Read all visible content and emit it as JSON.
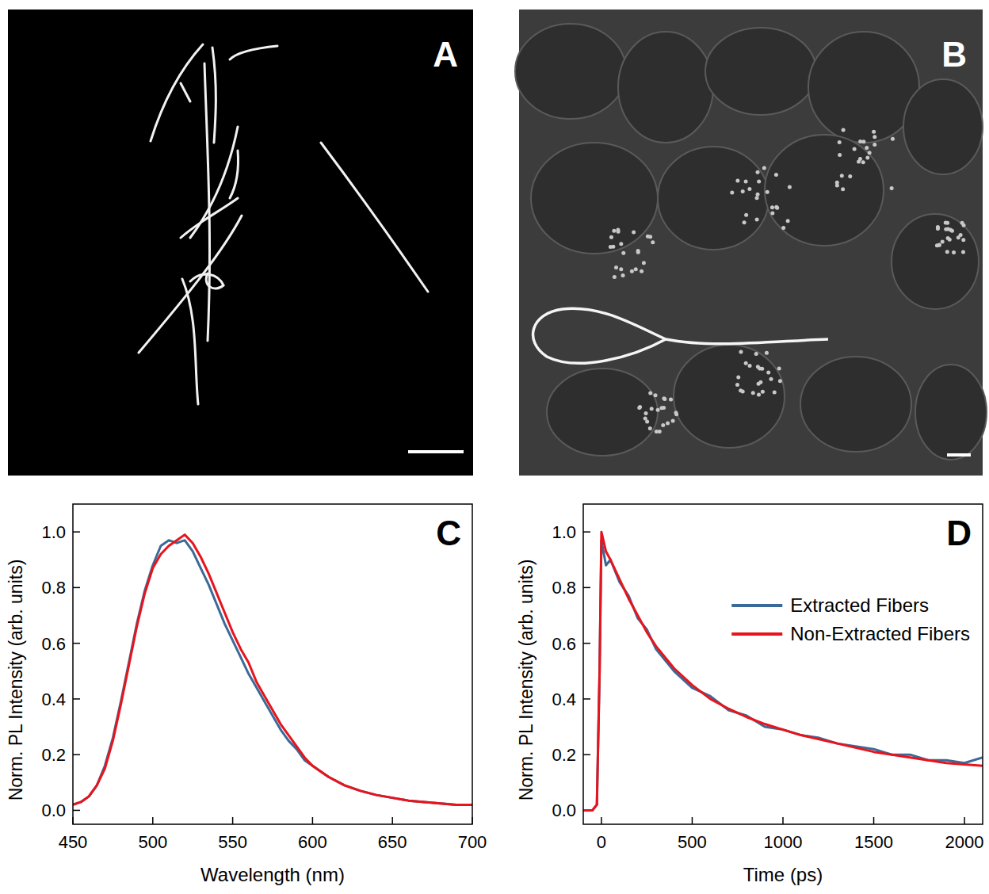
{
  "images": [
    {
      "panel_label": "A"
    },
    {
      "panel_label": "B"
    }
  ],
  "chart_data": [
    {
      "type": "line",
      "panel_label": "C",
      "x_label": "Wavelength (nm)",
      "y_label": "Norm. PL Intensity (arb. units)",
      "x": [
        450,
        455,
        460,
        465,
        470,
        475,
        480,
        485,
        490,
        495,
        500,
        505,
        510,
        515,
        520,
        525,
        530,
        535,
        540,
        545,
        550,
        555,
        560,
        565,
        570,
        575,
        580,
        585,
        590,
        595,
        600,
        610,
        620,
        630,
        640,
        650,
        660,
        670,
        680,
        690,
        700
      ],
      "series": [
        {
          "color": "#3b6a98",
          "values": [
            0.02,
            0.03,
            0.05,
            0.09,
            0.16,
            0.26,
            0.39,
            0.53,
            0.67,
            0.79,
            0.88,
            0.95,
            0.97,
            0.96,
            0.97,
            0.93,
            0.87,
            0.81,
            0.74,
            0.67,
            0.61,
            0.55,
            0.49,
            0.44,
            0.39,
            0.34,
            0.29,
            0.25,
            0.22,
            0.18,
            0.16,
            0.12,
            0.09,
            0.07,
            0.055,
            0.045,
            0.035,
            0.03,
            0.025,
            0.02,
            0.02
          ]
        },
        {
          "color": "#e8141c",
          "values": [
            0.02,
            0.03,
            0.05,
            0.09,
            0.15,
            0.25,
            0.38,
            0.52,
            0.66,
            0.78,
            0.87,
            0.92,
            0.95,
            0.97,
            0.99,
            0.96,
            0.91,
            0.85,
            0.78,
            0.71,
            0.64,
            0.58,
            0.53,
            0.46,
            0.41,
            0.36,
            0.31,
            0.27,
            0.23,
            0.19,
            0.16,
            0.12,
            0.09,
            0.07,
            0.055,
            0.045,
            0.035,
            0.03,
            0.025,
            0.02,
            0.02
          ]
        }
      ],
      "xlim": [
        450,
        700
      ],
      "xticks": [
        450,
        500,
        550,
        600,
        650,
        700
      ],
      "ylim": [
        -0.05,
        1.1
      ],
      "yticks": [
        {
          "value": 0,
          "label": "0.0"
        },
        0.2,
        0.4,
        0.6,
        0.8,
        {
          "value": 1,
          "label": "1.0"
        }
      ]
    },
    {
      "type": "line",
      "panel_label": "D",
      "x_label": "Time (ps)",
      "y_label": "Norm. PL Intensity (arb. units)",
      "x": [
        -100,
        -50,
        -25,
        -10,
        0,
        25,
        50,
        100,
        150,
        200,
        250,
        300,
        400,
        500,
        600,
        700,
        800,
        900,
        1000,
        1100,
        1200,
        1300,
        1400,
        1500,
        1600,
        1700,
        1800,
        1900,
        2000,
        2100
      ],
      "series": [
        {
          "name": "Extracted Fibers",
          "color": "#3b6a98",
          "values": [
            0.0,
            0.0,
            0.02,
            0.5,
            0.97,
            0.88,
            0.9,
            0.82,
            0.77,
            0.69,
            0.65,
            0.58,
            0.5,
            0.44,
            0.41,
            0.36,
            0.34,
            0.3,
            0.29,
            0.27,
            0.26,
            0.24,
            0.23,
            0.22,
            0.2,
            0.2,
            0.18,
            0.18,
            0.17,
            0.19
          ]
        },
        {
          "name": "Non-Extracted Fibers",
          "color": "#e8141c",
          "values": [
            0.0,
            0.0,
            0.02,
            0.5,
            1.0,
            0.93,
            0.9,
            0.83,
            0.76,
            0.7,
            0.64,
            0.59,
            0.51,
            0.45,
            0.4,
            0.365,
            0.335,
            0.31,
            0.29,
            0.27,
            0.255,
            0.24,
            0.225,
            0.21,
            0.2,
            0.19,
            0.18,
            0.17,
            0.165,
            0.16
          ]
        }
      ],
      "xlim": [
        -100,
        2100
      ],
      "xticks": [
        0,
        500,
        1000,
        1500,
        2000
      ],
      "ylim": [
        -0.05,
        1.1
      ],
      "yticks": [
        {
          "value": 0,
          "label": "0.0"
        },
        0.2,
        0.4,
        0.6,
        0.8,
        {
          "value": 1,
          "label": "1.0"
        }
      ],
      "legend": "upper right"
    }
  ]
}
